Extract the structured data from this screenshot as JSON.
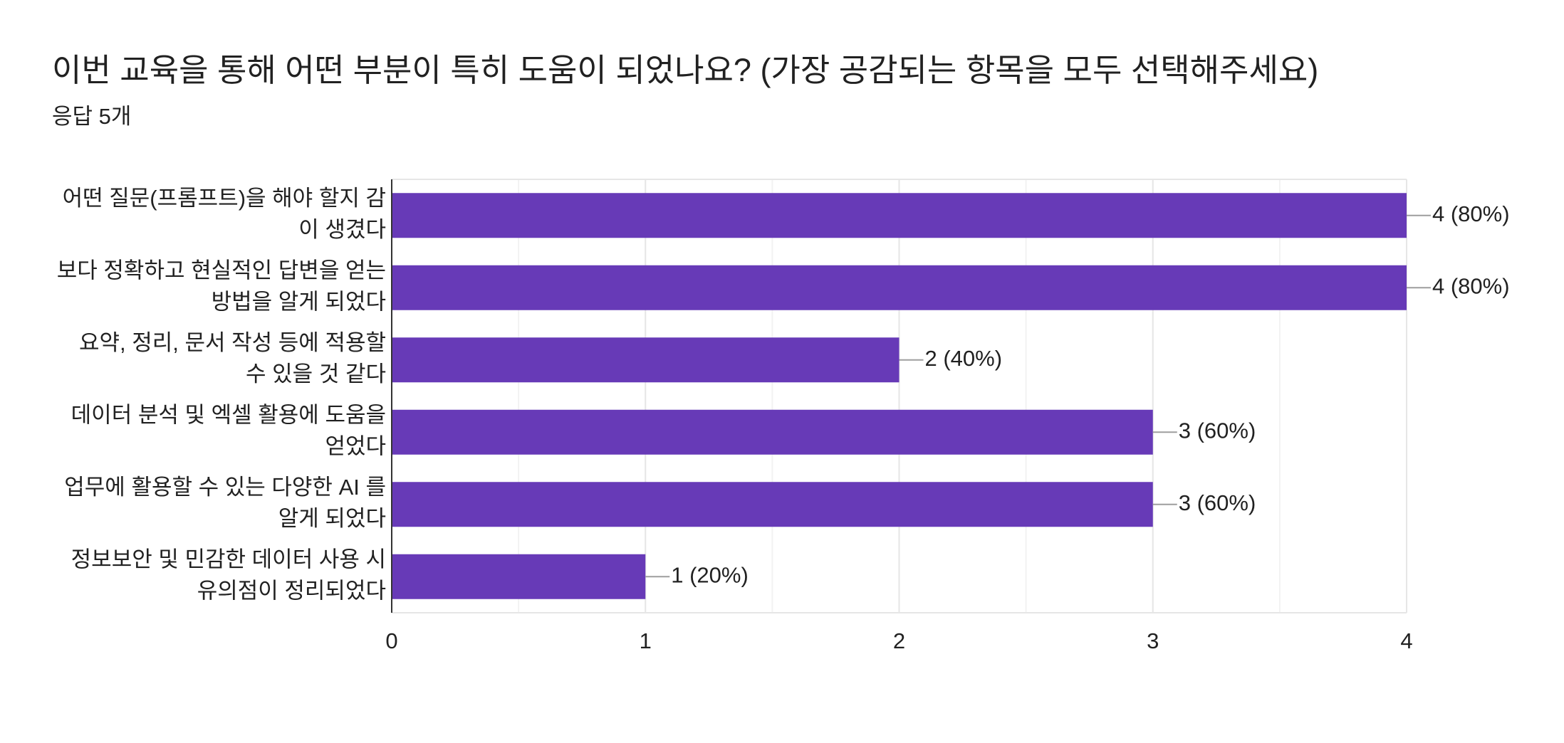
{
  "chart_data": {
    "type": "bar",
    "orientation": "horizontal",
    "title": "이번 교육을 통해 어떤 부분이 특히 도움이 되었나요? (가장 공감되는 항목을 모두 선택해주세요)",
    "subtitle": "응답 5개",
    "categories": [
      [
        "어떤 질문(프롬프트)을 해야 할지 감",
        "이 생겼다"
      ],
      [
        "보다 정확하고 현실적인 답변을 얻는",
        "방법을 알게 되었다"
      ],
      [
        "요약, 정리, 문서 작성 등에 적용할",
        "수 있을 것 같다"
      ],
      [
        "데이터 분석 및 엑셀 활용에 도움을",
        "얻었다"
      ],
      [
        "업무에 활용할 수 있는 다양한 AI 를",
        "알게 되었다"
      ],
      [
        "정보보안 및 민감한 데이터 사용 시",
        "유의점이 정리되었다"
      ]
    ],
    "values": [
      4,
      4,
      2,
      3,
      3,
      1
    ],
    "value_labels": [
      "4 (80%)",
      "4 (80%)",
      "2 (40%)",
      "3 (60%)",
      "3 (60%)",
      "1 (20%)"
    ],
    "color": "#673ab7",
    "xlim": [
      0,
      4
    ],
    "xticks": [
      0,
      1,
      2,
      3,
      4
    ],
    "grid": true
  }
}
